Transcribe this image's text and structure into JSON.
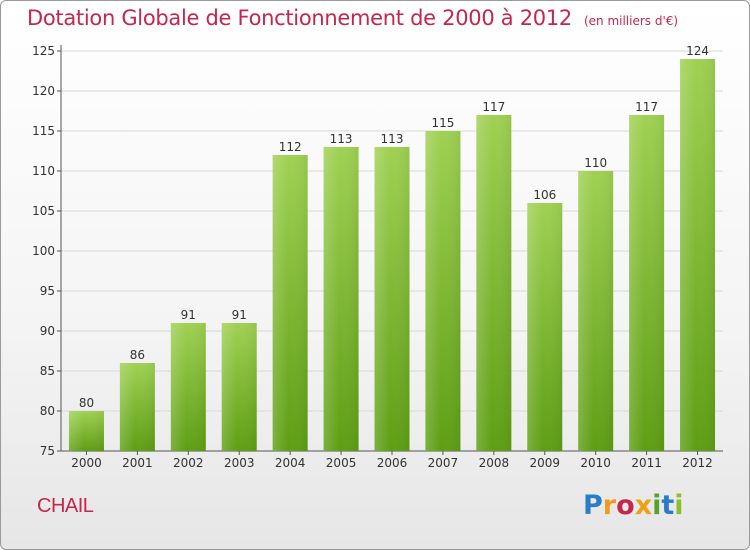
{
  "header": {
    "title": "Dotation Globale de Fonctionnement de 2000 à 2012",
    "unit": "(en milliers d'€)"
  },
  "commune": "CHAIL",
  "logo": {
    "text": "Proxiti",
    "colors": [
      "#2a7cc7",
      "#f29a1f",
      "#c4264d",
      "#e8a317",
      "#5aa02c",
      "#2a7cc7",
      "#8bbf2c"
    ]
  },
  "colors": {
    "bar_top": "#9fd153",
    "bar_bottom": "#5e9e14",
    "text": "#333333",
    "grid": "#d8d8d8",
    "accent": "#c4264d"
  },
  "chart_data": {
    "type": "bar",
    "title": "Dotation Globale de Fonctionnement de 2000 à 2012",
    "xlabel": "",
    "ylabel": "",
    "categories": [
      "2000",
      "2001",
      "2002",
      "2003",
      "2004",
      "2005",
      "2006",
      "2007",
      "2008",
      "2009",
      "2010",
      "2011",
      "2012"
    ],
    "values": [
      80,
      86,
      91,
      91,
      112,
      113,
      113,
      115,
      117,
      106,
      110,
      117,
      124
    ],
    "ylim": [
      75,
      125
    ],
    "yticks": [
      75,
      80,
      85,
      90,
      95,
      100,
      105,
      110,
      115,
      120,
      125
    ],
    "grid": true,
    "legend": "none"
  }
}
